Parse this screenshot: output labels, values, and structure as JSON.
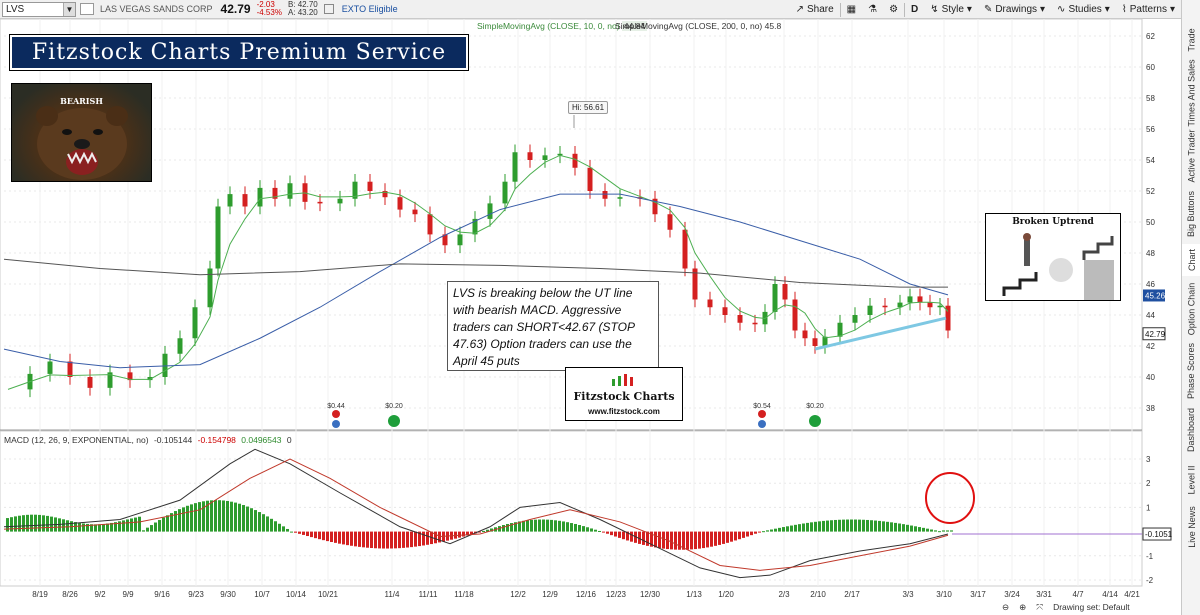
{
  "toolbar": {
    "symbol": "LVS",
    "company": "LAS VEGAS SANDS CORP",
    "last": "42.79",
    "change": "-2.03",
    "change_pct": "-4.53%",
    "bid": "B: 42.70",
    "ask": "A: 43.20",
    "exto": "EXTO Eligible",
    "buttons": {
      "share": "Share",
      "period": "D",
      "style": "Style",
      "drawings": "Drawings",
      "studies": "Studies",
      "patterns": "Patterns"
    }
  },
  "indicators": {
    "sma10": "SimpleMovingAvg (CLOSE, 10, 0, no)",
    "sma10_val": "44.84",
    "sma200": "SimpleMovingAvg (CLOSE, 200, 0, no)",
    "sma200_val": "45.8",
    "macd": "MACD (12, 26, 9, EXPONENTIAL, no)",
    "macd_vals": [
      "-0.105144",
      "-0.154798",
      "0.0496543",
      "0"
    ]
  },
  "overlays": {
    "banner": "Fitzstock Charts Premium Service",
    "bear_label": "BEARISH",
    "broken_title": "Broken Uptrend",
    "note": "LVS is breaking below the UT line with bearish MACD. Aggressive traders can SHORT<42.67 (STOP 47.63) Option traders can use the April 45 puts",
    "logo_name": "Fitzstock Charts",
    "logo_url": "www.fitzstock.com",
    "hi_label": "Hi: 56.61"
  },
  "price_axis": {
    "ticks": [
      "62",
      "60",
      "58",
      "56",
      "54",
      "52",
      "50",
      "48",
      "46",
      "44",
      "42",
      "40",
      "38"
    ],
    "badge_sma": "45.26",
    "badge_last": "42.79"
  },
  "macd_axis": {
    "ticks": [
      "3",
      "2",
      "1",
      "-1",
      "-2"
    ],
    "badge": "-0.1051"
  },
  "x_axis": [
    "8/19",
    "8/26",
    "9/2",
    "9/9",
    "9/16",
    "9/23",
    "9/30",
    "10/7",
    "10/14",
    "10/21",
    "11/4",
    "11/11",
    "11/18",
    "12/2",
    "12/9",
    "12/16",
    "12/23",
    "12/30",
    "1/13",
    "1/20",
    "2/3",
    "2/10",
    "2/17",
    "3/3",
    "3/10",
    "3/17",
    "3/24",
    "3/31",
    "4/7",
    "4/14",
    "4/21"
  ],
  "events": [
    {
      "label": "$0.44"
    },
    {
      "label": "$0.20"
    },
    {
      "label": "$0.54"
    },
    {
      "label": "$0.20"
    }
  ],
  "side_tabs": [
    "Trade",
    "Times And Sales",
    "Active Trader",
    "Big Buttons",
    "Chart",
    "Option Chain",
    "Phase Scores",
    "Dashboard",
    "Level II",
    "Live News"
  ],
  "footer": {
    "drawing_set": "Drawing set: Default"
  },
  "colors": {
    "up": "#2e9c2e",
    "down": "#d42020",
    "sma10": "#4caf50",
    "sma50": "#3a5ea8",
    "sma200": "#555555",
    "trendline": "#7ec8e3"
  }
}
